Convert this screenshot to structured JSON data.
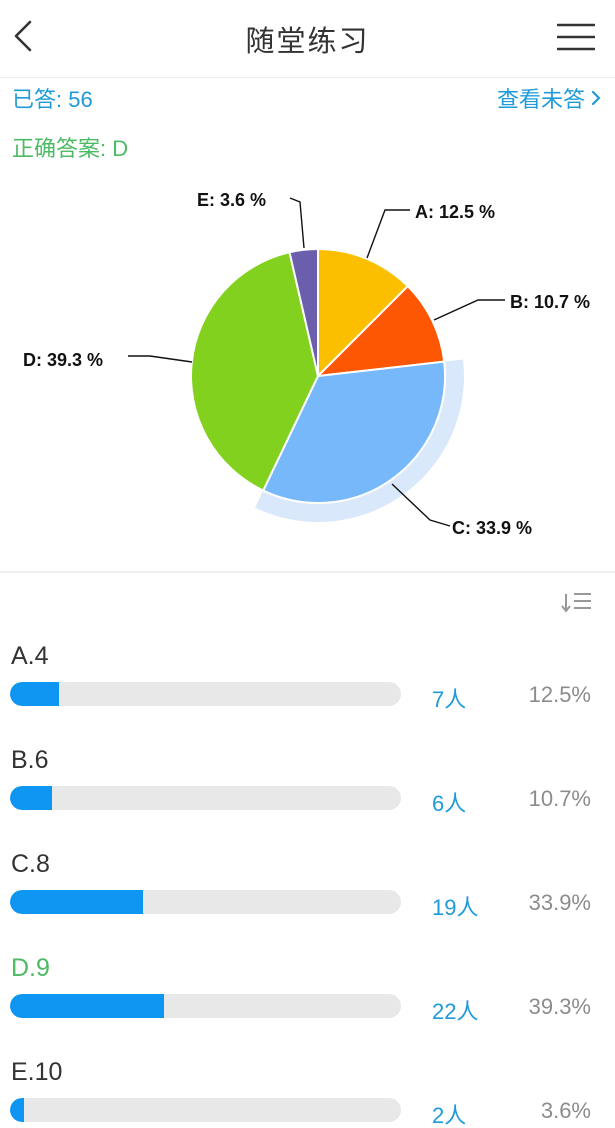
{
  "header": {
    "title": "随堂练习"
  },
  "summary": {
    "answered": "已答: 56",
    "view_unanswered": "查看未答",
    "correct_answer": "正确答案: D"
  },
  "chart_data": {
    "type": "pie",
    "slices": [
      {
        "label": "A: 12.5 %",
        "value": 12.5,
        "color": "#fcbf00"
      },
      {
        "label": "B: 10.7 %",
        "value": 10.7,
        "color": "#fd5704"
      },
      {
        "label": "C: 33.9 %",
        "value": 33.9,
        "color": "#76b8fa",
        "highlighted": true
      },
      {
        "label": "D: 39.3 %",
        "value": 39.3,
        "color": "#82d11f"
      },
      {
        "label": "E: 3.6 %",
        "value": 3.6,
        "color": "#6a5ead"
      }
    ]
  },
  "options": [
    {
      "label": "A.4",
      "count": "7人",
      "percent": "12.5%",
      "fill": 0.125,
      "correct": false
    },
    {
      "label": "B.6",
      "count": "6人",
      "percent": "10.7%",
      "fill": 0.107,
      "correct": false
    },
    {
      "label": "C.8",
      "count": "19人",
      "percent": "33.9%",
      "fill": 0.339,
      "correct": false
    },
    {
      "label": "D.9",
      "count": "22人",
      "percent": "39.3%",
      "fill": 0.393,
      "correct": true
    },
    {
      "label": "E.10",
      "count": "2人",
      "percent": "3.6%",
      "fill": 0.036,
      "correct": false
    }
  ],
  "colors": {
    "accent": "#1e9bd8",
    "correct": "#4cbb63",
    "bar": "#0e96f2",
    "track": "#e8e8e8"
  },
  "icons": {
    "back": "chevron-left-icon",
    "menu": "hamburger-menu-icon",
    "sort": "sort-list-icon",
    "more": "chevron-right-icon"
  }
}
